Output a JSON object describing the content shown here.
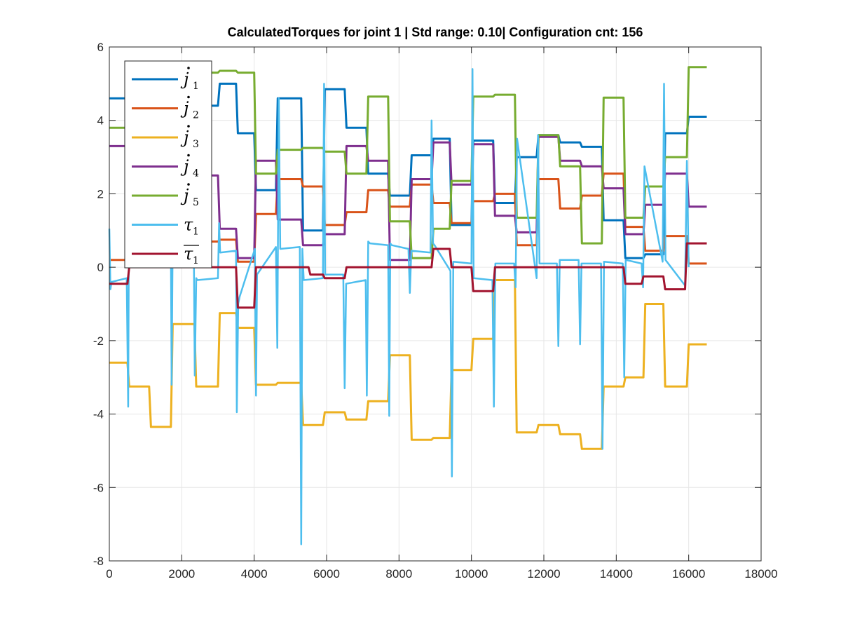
{
  "chart_data": {
    "type": "line",
    "title": "CalculatedTorques for joint 1 | Std range: 0.10| Configuration cnt: 156",
    "xlabel": "",
    "ylabel": "",
    "xlim": [
      0,
      18000
    ],
    "ylim": [
      -8,
      6
    ],
    "xticks": [
      0,
      2000,
      4000,
      6000,
      8000,
      10000,
      12000,
      14000,
      16000,
      18000
    ],
    "yticks": [
      -8,
      -6,
      -4,
      -2,
      0,
      2,
      4,
      6
    ],
    "xtick_labels": [
      "0",
      "2000",
      "4000",
      "6000",
      "8000",
      "10000",
      "12000",
      "14000",
      "16000",
      "18000"
    ],
    "ytick_labels": [
      "-8",
      "-6",
      "-4",
      "-2",
      "0",
      "2",
      "4",
      "6"
    ],
    "grid": true,
    "legend_position": "top-left",
    "series": [
      {
        "name": "j1",
        "label_main": "j",
        "label_sub": "1",
        "label_dot": true,
        "label_bar": false,
        "color": "#0072BD",
        "x": [
          0,
          500,
          550,
          1700,
          1750,
          2350,
          2400,
          3000,
          3050,
          3500,
          3550,
          4000,
          4050,
          4600,
          4650,
          5300,
          5350,
          5900,
          5950,
          6500,
          6550,
          7100,
          7150,
          7700,
          7750,
          8300,
          8350,
          8900,
          8950,
          9400,
          9450,
          10000,
          10050,
          10600,
          10650,
          11200,
          11250,
          11800,
          11850,
          12400,
          12450,
          13000,
          13050,
          13600,
          13650,
          14200,
          14250,
          14750,
          14800,
          15300,
          15350,
          15950,
          16000,
          16500
        ],
        "y": [
          4.6,
          4.6,
          4.3,
          4.3,
          4.45,
          4.45,
          4.4,
          4.4,
          5.0,
          5.0,
          3.65,
          3.65,
          2.1,
          2.1,
          4.6,
          4.6,
          1.0,
          1.0,
          4.85,
          4.85,
          3.8,
          3.8,
          2.55,
          2.55,
          1.95,
          1.95,
          3.05,
          3.05,
          3.5,
          3.5,
          1.15,
          1.15,
          3.45,
          3.45,
          1.75,
          1.75,
          3.0,
          3.0,
          3.6,
          3.6,
          3.4,
          3.4,
          3.28,
          3.28,
          1.28,
          1.28,
          0.25,
          0.25,
          0.35,
          0.35,
          3.65,
          3.65,
          4.1,
          4.1
        ]
      },
      {
        "name": "j2",
        "label_main": "j",
        "label_sub": "2",
        "label_dot": true,
        "label_bar": false,
        "color": "#D95319",
        "x": [
          0,
          500,
          550,
          1700,
          1750,
          2350,
          2400,
          3000,
          3050,
          3500,
          3550,
          4000,
          4050,
          4600,
          4650,
          5300,
          5350,
          5900,
          5950,
          6500,
          6550,
          7100,
          7150,
          7700,
          7750,
          8300,
          8350,
          8900,
          8950,
          9400,
          9450,
          10000,
          10050,
          10600,
          10650,
          11200,
          11250,
          11800,
          11850,
          12400,
          12450,
          13000,
          13050,
          13600,
          13650,
          14200,
          14250,
          14750,
          14800,
          15300,
          15350,
          15950,
          16000,
          16500
        ],
        "y": [
          0.2,
          0.2,
          0.45,
          0.45,
          0.6,
          0.6,
          0.7,
          0.7,
          0.75,
          0.75,
          0.15,
          0.15,
          1.45,
          1.45,
          2.4,
          2.4,
          2.2,
          2.2,
          1.15,
          1.15,
          1.5,
          1.5,
          2.1,
          2.1,
          1.65,
          1.65,
          2.25,
          2.25,
          1.75,
          1.75,
          1.2,
          1.2,
          1.8,
          1.8,
          2.0,
          2.0,
          0.6,
          0.6,
          2.4,
          2.4,
          1.6,
          1.6,
          1.95,
          1.95,
          2.55,
          2.55,
          1.1,
          1.1,
          0.45,
          0.45,
          0.85,
          0.85,
          0.1,
          0.1
        ]
      },
      {
        "name": "j3",
        "label_main": "j",
        "label_sub": "3",
        "label_dot": true,
        "label_bar": false,
        "color": "#EDB120",
        "x": [
          0,
          500,
          550,
          1100,
          1150,
          1700,
          1750,
          2350,
          2400,
          3000,
          3050,
          3500,
          3550,
          4000,
          4050,
          4600,
          4650,
          5300,
          5350,
          5900,
          5950,
          6500,
          6550,
          7100,
          7150,
          7700,
          7750,
          8300,
          8350,
          8900,
          8950,
          9400,
          9450,
          10000,
          10050,
          10600,
          10650,
          11200,
          11250,
          11800,
          11850,
          12400,
          12450,
          13000,
          13050,
          13600,
          13650,
          14200,
          14250,
          14750,
          14800,
          15300,
          15350,
          15950,
          16000,
          16500
        ],
        "y": [
          -2.6,
          -2.6,
          -3.25,
          -3.25,
          -4.35,
          -4.35,
          -1.55,
          -1.55,
          -3.25,
          -3.25,
          -1.25,
          -1.25,
          -1.65,
          -1.65,
          -3.2,
          -3.2,
          -3.15,
          -3.15,
          -4.3,
          -4.3,
          -3.95,
          -3.95,
          -4.15,
          -4.15,
          -3.65,
          -3.65,
          -2.4,
          -2.4,
          -4.7,
          -4.7,
          -4.65,
          -4.65,
          -2.8,
          -2.8,
          -1.95,
          -1.95,
          -0.35,
          -0.35,
          -4.5,
          -4.5,
          -4.3,
          -4.3,
          -4.55,
          -4.55,
          -4.95,
          -4.95,
          -3.25,
          -3.25,
          -3.0,
          -3.0,
          -1.0,
          -1.0,
          -3.25,
          -3.25,
          -2.1,
          -2.1
        ]
      },
      {
        "name": "j4",
        "label_main": "j",
        "label_sub": "4",
        "label_dot": true,
        "label_bar": false,
        "color": "#7E2F8E",
        "x": [
          0,
          500,
          550,
          1700,
          1750,
          2350,
          2400,
          3000,
          3050,
          3500,
          3550,
          4000,
          4050,
          4600,
          4650,
          5300,
          5350,
          5900,
          5950,
          6500,
          6550,
          7100,
          7150,
          7700,
          7750,
          8300,
          8350,
          8900,
          8950,
          9400,
          9450,
          10000,
          10050,
          10600,
          10650,
          11200,
          11250,
          11800,
          11850,
          12400,
          12450,
          13000,
          13050,
          13600,
          13650,
          14200,
          14250,
          14750,
          14800,
          15300,
          15350,
          15950,
          16000,
          16500
        ],
        "y": [
          3.3,
          3.3,
          2.95,
          2.95,
          2.8,
          2.8,
          2.5,
          2.5,
          1.05,
          1.05,
          0.25,
          0.25,
          2.9,
          2.9,
          1.3,
          1.3,
          0.6,
          0.6,
          0.9,
          0.9,
          3.3,
          3.3,
          2.9,
          2.9,
          0.2,
          0.2,
          2.4,
          2.4,
          3.4,
          3.4,
          2.25,
          2.25,
          3.35,
          3.35,
          1.4,
          1.4,
          0.95,
          0.95,
          3.55,
          3.55,
          2.9,
          2.9,
          2.75,
          2.75,
          2.15,
          2.15,
          0.9,
          0.9,
          1.7,
          1.7,
          2.55,
          2.55,
          1.65,
          1.65
        ]
      },
      {
        "name": "j5",
        "label_main": "j",
        "label_sub": "5",
        "label_dot": true,
        "label_bar": false,
        "color": "#77AC30",
        "x": [
          0,
          500,
          550,
          1700,
          1750,
          2350,
          2400,
          3000,
          3050,
          3500,
          3550,
          4000,
          4050,
          4600,
          4650,
          5300,
          5350,
          5900,
          5950,
          6500,
          6550,
          7100,
          7150,
          7700,
          7750,
          8300,
          8350,
          8900,
          8950,
          9400,
          9450,
          10000,
          10050,
          10600,
          10650,
          11200,
          11250,
          11800,
          11850,
          12400,
          12450,
          13000,
          13050,
          13600,
          13650,
          14200,
          14250,
          14750,
          14800,
          15300,
          15350,
          15950,
          16000,
          16500
        ],
        "y": [
          3.8,
          3.8,
          4.5,
          4.5,
          5.1,
          5.1,
          5.3,
          5.3,
          5.35,
          5.35,
          5.3,
          5.3,
          2.55,
          2.55,
          3.2,
          3.2,
          3.25,
          3.25,
          3.15,
          3.15,
          2.55,
          2.55,
          4.65,
          4.65,
          1.25,
          1.25,
          0.25,
          0.25,
          1.05,
          1.05,
          2.35,
          2.35,
          4.65,
          4.65,
          4.7,
          4.7,
          1.35,
          1.35,
          3.6,
          3.6,
          2.75,
          2.75,
          0.65,
          0.65,
          4.62,
          4.62,
          1.35,
          1.35,
          2.2,
          2.2,
          3.0,
          3.0,
          5.45,
          5.45
        ]
      },
      {
        "name": "tau1",
        "label_main": "τ",
        "label_sub": "1",
        "label_dot": false,
        "label_bar": false,
        "color": "#4DBEEE",
        "x": [
          0,
          30,
          60,
          480,
          520,
          540,
          560,
          1700,
          1720,
          1750,
          1780,
          2330,
          2360,
          2400,
          2430,
          3000,
          3030,
          3060,
          3500,
          3520,
          3560,
          3600,
          4020,
          4050,
          4080,
          4600,
          4640,
          4680,
          4720,
          5260,
          5300,
          5330,
          5370,
          5900,
          5930,
          5960,
          6460,
          6500,
          6540,
          7080,
          7110,
          7150,
          7200,
          7700,
          7730,
          7760,
          7800,
          8260,
          8300,
          8340,
          8870,
          8900,
          8940,
          8980,
          9420,
          9460,
          9500,
          10000,
          10030,
          10060,
          10580,
          10620,
          10660,
          11180,
          11220,
          11260,
          11800,
          11840,
          11880,
          12360,
          12400,
          12440,
          12960,
          13000,
          13040,
          13580,
          13620,
          13660,
          14180,
          14220,
          14260,
          14700,
          14740,
          14780,
          15280,
          15320,
          15360,
          15900,
          15950,
          16000
        ],
        "y": [
          1.05,
          -0.6,
          -0.4,
          -0.3,
          -3.8,
          0.8,
          0.75,
          0.6,
          -3.2,
          0.8,
          0.6,
          0.9,
          -2.95,
          -0.3,
          -0.35,
          -0.3,
          1.2,
          0.4,
          0.45,
          -3.95,
          -1.0,
          -0.8,
          0.5,
          -3.5,
          -0.2,
          0.55,
          -2.2,
          4.6,
          0.5,
          0.55,
          -7.55,
          0.5,
          -0.35,
          -0.3,
          5.0,
          -0.2,
          -0.2,
          -3.3,
          -0.45,
          -0.35,
          -3.5,
          0.7,
          0.65,
          0.6,
          -4.05,
          0.65,
          0.6,
          0.5,
          -0.7,
          0.45,
          0.4,
          4.0,
          0.65,
          0.6,
          -0.1,
          -5.7,
          0.15,
          0.1,
          5.4,
          -0.3,
          -0.35,
          -3.8,
          0.1,
          0.1,
          -0.55,
          3.5,
          -0.3,
          3.6,
          0.1,
          0.1,
          -2.15,
          0.2,
          0.2,
          -2.1,
          0.1,
          0.1,
          -4.95,
          0.15,
          0.1,
          -3.0,
          0.2,
          0.1,
          -0.55,
          2.75,
          0.15,
          5.0,
          0.2,
          -0.5,
          2.9,
          0.0
        ]
      },
      {
        "name": "tau1_mean",
        "label_main": "τ",
        "label_sub": "1",
        "label_dot": false,
        "label_bar": true,
        "color": "#A2142F",
        "x": [
          0,
          500,
          550,
          3500,
          3550,
          4000,
          4050,
          5500,
          5550,
          5900,
          5950,
          6500,
          6550,
          8900,
          8950,
          9400,
          9450,
          10000,
          10050,
          10600,
          10650,
          14200,
          14250,
          14700,
          14750,
          15300,
          15350,
          15900,
          15950,
          16500
        ],
        "y": [
          -0.45,
          -0.45,
          0.0,
          0.0,
          -1.1,
          -1.1,
          0.0,
          0.0,
          -0.2,
          -0.2,
          -0.3,
          -0.3,
          0.0,
          0.0,
          0.5,
          0.5,
          0.0,
          0.0,
          -0.65,
          -0.65,
          0.0,
          0.0,
          -0.45,
          -0.45,
          -0.25,
          -0.25,
          -0.6,
          -0.6,
          0.65,
          0.65
        ]
      }
    ]
  }
}
